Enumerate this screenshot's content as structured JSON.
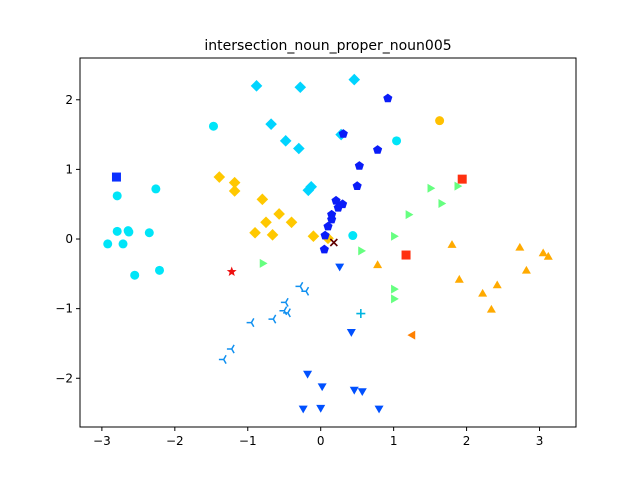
{
  "chart_data": {
    "type": "scatter",
    "title": "intersection_noun_proper_noun005",
    "xlabel": "",
    "ylabel": "",
    "xlim": [
      -3.3,
      3.5
    ],
    "ylim": [
      -2.7,
      2.6
    ],
    "xticks": [
      -3,
      -2,
      -1,
      0,
      1,
      2,
      3
    ],
    "yticks": [
      -2,
      -1,
      0,
      1,
      2
    ],
    "xtick_labels": [
      "−3",
      "−2",
      "−1",
      "0",
      "1",
      "2",
      "3"
    ],
    "ytick_labels": [
      "−2",
      "−1",
      "0",
      "1",
      "2"
    ],
    "grid": false,
    "legend": false,
    "series": [
      {
        "marker": "circle",
        "color": "#00e5f8",
        "points": [
          [
            -2.92,
            -0.07
          ],
          [
            -2.79,
            0.62
          ],
          [
            -2.79,
            0.11
          ],
          [
            -2.71,
            -0.07
          ],
          [
            -2.64,
            0.12
          ],
          [
            -2.63,
            0.1
          ],
          [
            -2.55,
            -0.52
          ],
          [
            -2.35,
            0.09
          ],
          [
            -2.26,
            0.72
          ],
          [
            -2.21,
            -0.45
          ],
          [
            -1.47,
            1.62
          ],
          [
            0.44,
            0.05
          ],
          [
            1.04,
            1.41
          ]
        ]
      },
      {
        "marker": "square",
        "color": "#0a30ff",
        "points": [
          [
            -2.8,
            0.89
          ]
        ]
      },
      {
        "marker": "square",
        "color": "#ff3010",
        "points": [
          [
            1.17,
            -0.23
          ],
          [
            1.94,
            0.86
          ]
        ]
      },
      {
        "marker": "circle",
        "color": "#ffc000",
        "points": [
          [
            1.63,
            1.7
          ]
        ]
      },
      {
        "marker": "diamond",
        "color": "#00d4ff",
        "points": [
          [
            -0.88,
            2.2
          ],
          [
            -0.28,
            2.18
          ],
          [
            0.46,
            2.29
          ],
          [
            -0.68,
            1.65
          ],
          [
            -0.48,
            1.41
          ],
          [
            -0.3,
            1.3
          ],
          [
            0.28,
            1.5
          ],
          [
            -0.17,
            0.7
          ],
          [
            -0.13,
            0.75
          ]
        ]
      },
      {
        "marker": "diamond",
        "color": "#ffc800",
        "points": [
          [
            -1.39,
            0.89
          ],
          [
            -1.18,
            0.81
          ],
          [
            -1.18,
            0.69
          ],
          [
            -0.8,
            0.57
          ],
          [
            -0.57,
            0.36
          ],
          [
            -0.4,
            0.24
          ],
          [
            -0.75,
            0.24
          ],
          [
            -0.9,
            0.09
          ],
          [
            -0.66,
            0.06
          ],
          [
            -0.1,
            0.04
          ],
          [
            0.1,
            0.01
          ]
        ]
      },
      {
        "marker": "pentagon",
        "color": "#0a1cf8",
        "points": [
          [
            0.92,
            2.02
          ],
          [
            0.31,
            1.51
          ],
          [
            0.78,
            1.28
          ],
          [
            0.53,
            1.05
          ],
          [
            0.5,
            0.76
          ],
          [
            0.21,
            0.55
          ],
          [
            0.3,
            0.5
          ],
          [
            0.24,
            0.45
          ],
          [
            0.15,
            0.35
          ],
          [
            0.15,
            0.28
          ],
          [
            0.1,
            0.18
          ],
          [
            0.06,
            0.05
          ],
          [
            0.05,
            -0.15
          ]
        ]
      },
      {
        "marker": "triangle-up",
        "color": "#ffaa00",
        "points": [
          [
            0.78,
            -0.38
          ],
          [
            1.8,
            -0.09
          ],
          [
            1.9,
            -0.59
          ],
          [
            2.22,
            -0.79
          ],
          [
            2.34,
            -1.02
          ],
          [
            2.42,
            -0.67
          ],
          [
            2.73,
            -0.13
          ],
          [
            2.82,
            -0.46
          ],
          [
            3.05,
            -0.21
          ],
          [
            3.12,
            -0.26
          ]
        ]
      },
      {
        "marker": "triangle-right",
        "color": "#66ff80",
        "points": [
          [
            -0.8,
            -0.35
          ],
          [
            0.55,
            -0.17
          ],
          [
            1.0,
            0.04
          ],
          [
            1.2,
            0.35
          ],
          [
            1.5,
            0.73
          ],
          [
            1.65,
            0.51
          ],
          [
            1.87,
            0.76
          ],
          [
            1.0,
            -0.72
          ],
          [
            1.0,
            -0.86
          ]
        ]
      },
      {
        "marker": "triangle-left",
        "color": "#ff8000",
        "points": [
          [
            1.26,
            -1.38
          ]
        ]
      },
      {
        "marker": "triangle-down",
        "color": "#0050ff",
        "points": [
          [
            0.26,
            -0.39
          ],
          [
            0.42,
            -1.33
          ],
          [
            -0.18,
            -1.93
          ],
          [
            0.02,
            -2.11
          ],
          [
            0.46,
            -2.16
          ],
          [
            0.57,
            -2.18
          ],
          [
            -0.24,
            -2.43
          ],
          [
            0.0,
            -2.42
          ],
          [
            0.8,
            -2.43
          ]
        ]
      },
      {
        "marker": "tri-left",
        "color": "#1090f0",
        "points": [
          [
            -0.28,
            -0.68
          ],
          [
            -0.2,
            -0.75
          ],
          [
            -0.48,
            -0.91
          ],
          [
            -0.5,
            -1.03
          ],
          [
            -0.45,
            -1.06
          ],
          [
            -0.65,
            -1.15
          ],
          [
            -0.95,
            -1.2
          ],
          [
            -1.22,
            -1.58
          ],
          [
            -1.33,
            -1.73
          ]
        ]
      },
      {
        "marker": "plus",
        "color": "#00b4e0",
        "points": [
          [
            0.55,
            -1.07
          ]
        ]
      },
      {
        "marker": "star",
        "color": "#ee1010",
        "points": [
          [
            -1.22,
            -0.47
          ]
        ]
      },
      {
        "marker": "x",
        "color": "#600000",
        "points": [
          [
            0.18,
            -0.05
          ]
        ]
      }
    ]
  }
}
